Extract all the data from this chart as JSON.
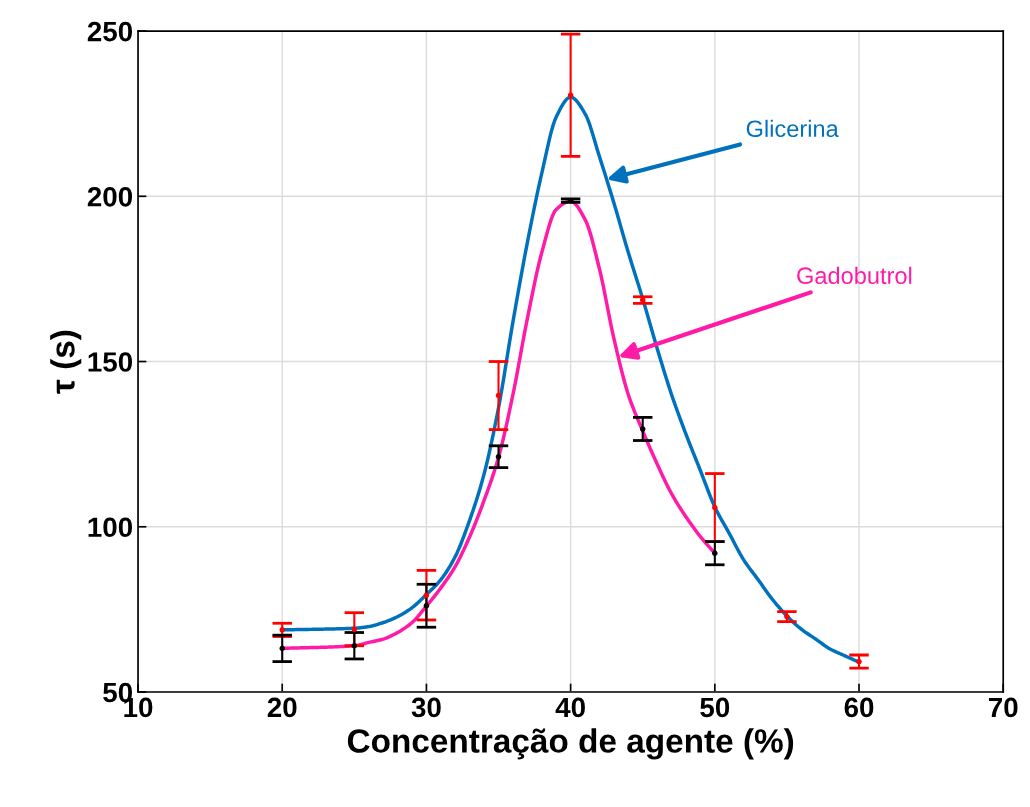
{
  "chart_data": {
    "type": "line",
    "xlabel": "Concentração de agente (%)",
    "ylabel": "τ (s)",
    "xlim": [
      10,
      70
    ],
    "ylim": [
      50,
      250
    ],
    "xticks": [
      10,
      20,
      30,
      40,
      50,
      60,
      70
    ],
    "yticks": [
      50,
      100,
      150,
      200,
      250
    ],
    "grid": true,
    "series": [
      {
        "name": "Glicerina",
        "color": "#0072bd",
        "x": [
          20,
          25,
          26,
          27,
          28,
          29,
          30,
          31,
          32,
          33,
          34,
          35,
          36,
          37,
          38,
          39,
          40,
          41,
          42,
          43,
          44,
          45,
          46,
          47,
          48,
          49,
          50,
          51,
          52,
          53,
          54,
          55,
          56,
          57,
          58,
          59,
          60
        ],
        "values": [
          68.8,
          69.3,
          69.8,
          71,
          72.8,
          75.5,
          79.5,
          84,
          91,
          102,
          116,
          136,
          162,
          186,
          207,
          224,
          230,
          225,
          212,
          198,
          183,
          169,
          154,
          140,
          128,
          117,
          106,
          98,
          90,
          84,
          78,
          73,
          69,
          66,
          63,
          61,
          59
        ]
      },
      {
        "name": "Gadobutrol",
        "color": "#ff1aa8",
        "x": [
          20,
          25,
          26,
          27,
          28,
          29,
          30,
          31,
          32,
          33,
          34,
          35,
          36,
          37,
          38,
          39,
          40,
          41,
          42,
          43,
          44,
          45,
          46,
          47,
          48,
          49,
          50
        ],
        "values": [
          63.2,
          64,
          65,
          66,
          68,
          71,
          76,
          81.5,
          88,
          97,
          108,
          121,
          140,
          163,
          183,
          196,
          198.5,
          193,
          178,
          157,
          140,
          129,
          119,
          110,
          103,
          97,
          92
        ]
      },
      {
        "type": "scatter",
        "color": "#ff0000",
        "marker": "circle",
        "x": [
          20,
          25,
          30,
          35,
          40,
          45,
          50,
          55,
          60
        ],
        "values": [
          68.8,
          69,
          79.3,
          139.7,
          230.6,
          168.6,
          105.8,
          72.8,
          59.2
        ],
        "errors": [
          2,
          5,
          7.5,
          10.3,
          18.5,
          1,
          10.3,
          1.5,
          2
        ]
      },
      {
        "type": "scatter",
        "color": "#000000",
        "marker": "circle",
        "x": [
          20,
          25,
          30,
          35,
          40,
          45,
          50
        ],
        "values": [
          63.2,
          64,
          76.1,
          121.2,
          198.7,
          129.6,
          92
        ],
        "errors": [
          4,
          4,
          6.5,
          3.3,
          0.5,
          3.5,
          3.5
        ]
      }
    ]
  }
}
